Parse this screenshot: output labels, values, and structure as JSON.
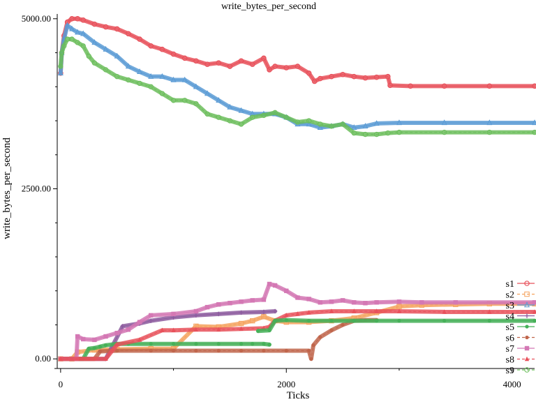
{
  "chart_data": {
    "type": "line",
    "title": "write_bytes_per_second",
    "xlabel": "Ticks",
    "ylabel": "write_bytes_per_second",
    "xlim": [
      -30,
      4200
    ],
    "ylim": [
      -80,
      5070
    ],
    "x_ticks": [
      0,
      2000,
      4000
    ],
    "x_minor_ticks": [
      1000,
      3000
    ],
    "y_ticks": [
      {
        "value": 0,
        "label": "0.00"
      },
      {
        "value": 2500,
        "label": "2500.00"
      },
      {
        "value": 5000,
        "label": "5000.00"
      }
    ],
    "y_minor_ticks": [
      500,
      1000,
      1500,
      2000,
      3000,
      3500,
      4000,
      4500
    ],
    "grid": false,
    "legend_position": "bottom-right",
    "series": [
      {
        "name": "s1",
        "color": "#e8515b",
        "marker": "circle",
        "dash": "none",
        "points": [
          [
            0,
            4200
          ],
          [
            10,
            4500
          ],
          [
            30,
            4750
          ],
          [
            60,
            4950
          ],
          [
            100,
            5000
          ],
          [
            150,
            5000
          ],
          [
            200,
            4980
          ],
          [
            300,
            4920
          ],
          [
            400,
            4880
          ],
          [
            500,
            4850
          ],
          [
            600,
            4780
          ],
          [
            700,
            4700
          ],
          [
            800,
            4600
          ],
          [
            900,
            4550
          ],
          [
            1000,
            4480
          ],
          [
            1100,
            4420
          ],
          [
            1200,
            4380
          ],
          [
            1300,
            4330
          ],
          [
            1400,
            4350
          ],
          [
            1500,
            4300
          ],
          [
            1600,
            4380
          ],
          [
            1700,
            4330
          ],
          [
            1800,
            4420
          ],
          [
            1850,
            4250
          ],
          [
            1900,
            4300
          ],
          [
            2000,
            4280
          ],
          [
            2100,
            4300
          ],
          [
            2200,
            4200
          ],
          [
            2250,
            4080
          ],
          [
            2300,
            4120
          ],
          [
            2400,
            4150
          ],
          [
            2500,
            4180
          ],
          [
            2600,
            4150
          ],
          [
            2700,
            4130
          ],
          [
            2800,
            4140
          ],
          [
            2900,
            4150
          ],
          [
            2920,
            4020
          ],
          [
            3100,
            4010
          ],
          [
            3400,
            4010
          ],
          [
            3800,
            4010
          ],
          [
            4200,
            4010
          ]
        ]
      },
      {
        "name": "s2",
        "color": "#f5a25d",
        "marker": "square-open",
        "dash": "4,3",
        "points": [
          [
            0,
            0
          ],
          [
            100,
            0
          ],
          [
            150,
            100
          ],
          [
            300,
            130
          ],
          [
            500,
            140
          ],
          [
            800,
            150
          ],
          [
            1000,
            150
          ],
          [
            1200,
            480
          ],
          [
            1400,
            470
          ],
          [
            1600,
            520
          ],
          [
            1700,
            560
          ],
          [
            1800,
            620
          ],
          [
            1900,
            560
          ],
          [
            2000,
            540
          ],
          [
            2200,
            540
          ],
          [
            2400,
            560
          ],
          [
            2600,
            600
          ],
          [
            2800,
            680
          ],
          [
            3000,
            770
          ],
          [
            3200,
            790
          ],
          [
            3500,
            800
          ],
          [
            3800,
            810
          ],
          [
            4200,
            810
          ]
        ]
      },
      {
        "name": "s3",
        "color": "#5a9bd5",
        "marker": "triangle-open",
        "dash": "none",
        "points": [
          [
            0,
            4200
          ],
          [
            10,
            4500
          ],
          [
            30,
            4700
          ],
          [
            60,
            4900
          ],
          [
            100,
            4850
          ],
          [
            150,
            4800
          ],
          [
            200,
            4780
          ],
          [
            300,
            4650
          ],
          [
            400,
            4550
          ],
          [
            500,
            4450
          ],
          [
            600,
            4300
          ],
          [
            700,
            4220
          ],
          [
            800,
            4150
          ],
          [
            900,
            4150
          ],
          [
            1000,
            4100
          ],
          [
            1100,
            4100
          ],
          [
            1200,
            4000
          ],
          [
            1300,
            3900
          ],
          [
            1400,
            3800
          ],
          [
            1500,
            3700
          ],
          [
            1600,
            3650
          ],
          [
            1700,
            3600
          ],
          [
            1800,
            3600
          ],
          [
            1900,
            3600
          ],
          [
            2000,
            3550
          ],
          [
            2100,
            3450
          ],
          [
            2200,
            3450
          ],
          [
            2300,
            3400
          ],
          [
            2400,
            3420
          ],
          [
            2500,
            3450
          ],
          [
            2600,
            3400
          ],
          [
            2700,
            3420
          ],
          [
            2800,
            3460
          ],
          [
            3000,
            3470
          ],
          [
            3400,
            3470
          ],
          [
            3800,
            3470
          ],
          [
            4200,
            3470
          ]
        ]
      },
      {
        "name": "s4",
        "color": "#8c5a9e",
        "marker": "plus",
        "dash": "none",
        "points": [
          [
            0,
            0
          ],
          [
            400,
            0
          ],
          [
            550,
            480
          ],
          [
            700,
            520
          ],
          [
            800,
            560
          ],
          [
            1000,
            610
          ],
          [
            1200,
            640
          ],
          [
            1400,
            660
          ],
          [
            1600,
            680
          ],
          [
            1800,
            690
          ],
          [
            1900,
            700
          ]
        ]
      },
      {
        "name": "s5",
        "color": "#45b058",
        "marker": "dot",
        "dash": "none",
        "points": [
          [
            0,
            0
          ],
          [
            200,
            0
          ],
          [
            250,
            150
          ],
          [
            300,
            160
          ],
          [
            350,
            180
          ],
          [
            400,
            200
          ],
          [
            500,
            220
          ],
          [
            600,
            220
          ],
          [
            800,
            220
          ],
          [
            1000,
            220
          ],
          [
            1200,
            220
          ],
          [
            1400,
            220
          ],
          [
            1600,
            220
          ],
          [
            1700,
            220
          ],
          [
            1800,
            220
          ],
          [
            1850,
            210
          ]
        ]
      },
      {
        "name": "s6",
        "color": "#c0654b",
        "marker": "dot",
        "dash": "4,3",
        "points": [
          [
            0,
            0
          ],
          [
            300,
            0
          ],
          [
            350,
            110
          ],
          [
            500,
            120
          ],
          [
            800,
            120
          ],
          [
            1000,
            120
          ],
          [
            1200,
            120
          ],
          [
            1400,
            120
          ],
          [
            1600,
            120
          ],
          [
            1800,
            120
          ],
          [
            2000,
            120
          ],
          [
            2200,
            120
          ],
          [
            2220,
            0
          ],
          [
            2240,
            200
          ],
          [
            2300,
            320
          ],
          [
            2400,
            420
          ],
          [
            2500,
            500
          ],
          [
            2600,
            560
          ],
          [
            2700,
            570
          ],
          [
            2800,
            570
          ]
        ]
      },
      {
        "name": "s7",
        "color": "#d478b4",
        "marker": "square",
        "dash": "none",
        "points": [
          [
            0,
            0
          ],
          [
            140,
            0
          ],
          [
            150,
            330
          ],
          [
            200,
            290
          ],
          [
            300,
            280
          ],
          [
            400,
            330
          ],
          [
            500,
            380
          ],
          [
            600,
            430
          ],
          [
            700,
            540
          ],
          [
            800,
            640
          ],
          [
            1000,
            660
          ],
          [
            1200,
            700
          ],
          [
            1300,
            760
          ],
          [
            1400,
            800
          ],
          [
            1500,
            820
          ],
          [
            1600,
            840
          ],
          [
            1700,
            860
          ],
          [
            1800,
            870
          ],
          [
            1850,
            1100
          ],
          [
            1900,
            1080
          ],
          [
            2000,
            1000
          ],
          [
            2100,
            900
          ],
          [
            2200,
            880
          ],
          [
            2300,
            830
          ],
          [
            2400,
            840
          ],
          [
            2500,
            860
          ],
          [
            2600,
            830
          ],
          [
            2700,
            820
          ],
          [
            2800,
            830
          ],
          [
            3000,
            840
          ],
          [
            3200,
            830
          ],
          [
            3500,
            830
          ],
          [
            4200,
            830
          ]
        ]
      },
      {
        "name": "s8",
        "color": "#e8515b",
        "marker": "triangle",
        "dash": "4,3",
        "points": [
          [
            0,
            0
          ],
          [
            400,
            0
          ],
          [
            500,
            210
          ],
          [
            700,
            280
          ],
          [
            900,
            420
          ],
          [
            1000,
            420
          ],
          [
            1200,
            430
          ],
          [
            1400,
            430
          ],
          [
            1600,
            440
          ],
          [
            1800,
            450
          ],
          [
            1850,
            470
          ],
          [
            1900,
            560
          ],
          [
            2000,
            640
          ],
          [
            2100,
            660
          ],
          [
            2200,
            680
          ],
          [
            2400,
            700
          ],
          [
            2600,
            700
          ],
          [
            2800,
            700
          ],
          [
            3000,
            700
          ],
          [
            3400,
            690
          ],
          [
            3800,
            690
          ],
          [
            4200,
            690
          ]
        ]
      },
      {
        "name": "s9",
        "color": "#6bbd5b",
        "marker": "circle-open",
        "dash": "4,3",
        "points": [
          [
            0,
            4300
          ],
          [
            10,
            4500
          ],
          [
            30,
            4600
          ],
          [
            60,
            4700
          ],
          [
            100,
            4700
          ],
          [
            150,
            4650
          ],
          [
            200,
            4600
          ],
          [
            250,
            4450
          ],
          [
            300,
            4350
          ],
          [
            400,
            4250
          ],
          [
            500,
            4150
          ],
          [
            600,
            4100
          ],
          [
            700,
            4050
          ],
          [
            800,
            4000
          ],
          [
            900,
            3900
          ],
          [
            1000,
            3800
          ],
          [
            1100,
            3800
          ],
          [
            1200,
            3750
          ],
          [
            1300,
            3600
          ],
          [
            1400,
            3550
          ],
          [
            1500,
            3500
          ],
          [
            1600,
            3450
          ],
          [
            1700,
            3550
          ],
          [
            1800,
            3580
          ],
          [
            1900,
            3620
          ],
          [
            2000,
            3550
          ],
          [
            2100,
            3480
          ],
          [
            2200,
            3500
          ],
          [
            2300,
            3450
          ],
          [
            2400,
            3420
          ],
          [
            2500,
            3450
          ],
          [
            2600,
            3320
          ],
          [
            2700,
            3300
          ],
          [
            2800,
            3300
          ],
          [
            2900,
            3320
          ],
          [
            3000,
            3330
          ],
          [
            3400,
            3330
          ],
          [
            3800,
            3330
          ],
          [
            4200,
            3330
          ]
        ]
      },
      {
        "name": "",
        "color": "#45b058",
        "marker": "dot",
        "dash": "none",
        "points": [
          [
            1750,
            410
          ],
          [
            1850,
            420
          ],
          [
            1900,
            560
          ],
          [
            2000,
            570
          ],
          [
            2200,
            560
          ],
          [
            2400,
            560
          ],
          [
            2600,
            560
          ],
          [
            2800,
            560
          ],
          [
            3000,
            560
          ],
          [
            3400,
            560
          ],
          [
            3800,
            560
          ],
          [
            4200,
            560
          ]
        ]
      }
    ]
  }
}
